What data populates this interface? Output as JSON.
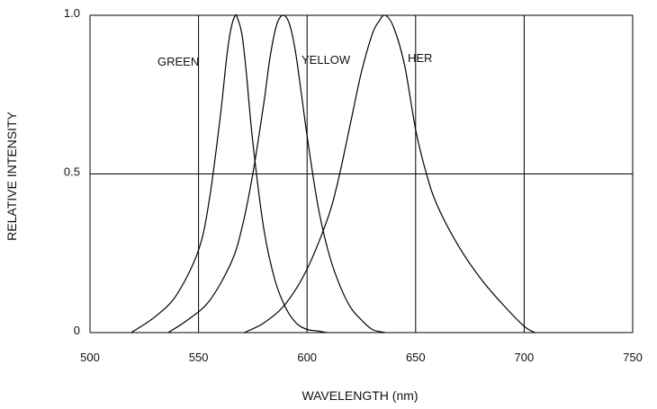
{
  "chart_data": {
    "type": "line",
    "title": "",
    "xlabel": "WAVELENGTH (nm)",
    "ylabel": "RELATIVE INTENSITY",
    "xlim": [
      500,
      750
    ],
    "ylim": [
      0,
      1.0
    ],
    "x_ticks": [
      "500",
      "550",
      "600",
      "650",
      "700",
      "750"
    ],
    "y_ticks": [
      "0",
      "0.5",
      "1.0"
    ],
    "grid": true,
    "series": [
      {
        "name": "GREEN",
        "x": [
          519,
          530,
          540,
          550,
          555,
          560,
          563,
          565,
          567,
          568,
          570,
          572,
          575,
          580,
          585,
          590,
          595,
          600,
          605,
          609
        ],
        "y": [
          0.0,
          0.05,
          0.12,
          0.26,
          0.42,
          0.68,
          0.87,
          0.96,
          1.0,
          0.99,
          0.94,
          0.82,
          0.6,
          0.33,
          0.17,
          0.08,
          0.03,
          0.01,
          0.005,
          0.0
        ]
      },
      {
        "name": "YELLOW",
        "x": [
          536,
          545,
          555,
          565,
          570,
          575,
          580,
          583,
          586,
          589,
          592,
          595,
          600,
          605,
          610,
          615,
          620,
          625,
          630,
          636
        ],
        "y": [
          0.0,
          0.04,
          0.1,
          0.22,
          0.33,
          0.5,
          0.72,
          0.87,
          0.97,
          1.0,
          0.97,
          0.87,
          0.62,
          0.4,
          0.25,
          0.15,
          0.08,
          0.04,
          0.01,
          0.0
        ]
      },
      {
        "name": "HER",
        "x": [
          571,
          580,
          590,
          600,
          610,
          615,
          620,
          625,
          630,
          633,
          636,
          640,
          645,
          650,
          655,
          660,
          670,
          680,
          690,
          700,
          705
        ],
        "y": [
          0.0,
          0.03,
          0.09,
          0.2,
          0.37,
          0.5,
          0.66,
          0.82,
          0.94,
          0.98,
          1.0,
          0.96,
          0.84,
          0.64,
          0.5,
          0.4,
          0.27,
          0.17,
          0.09,
          0.02,
          0.0
        ]
      }
    ]
  }
}
